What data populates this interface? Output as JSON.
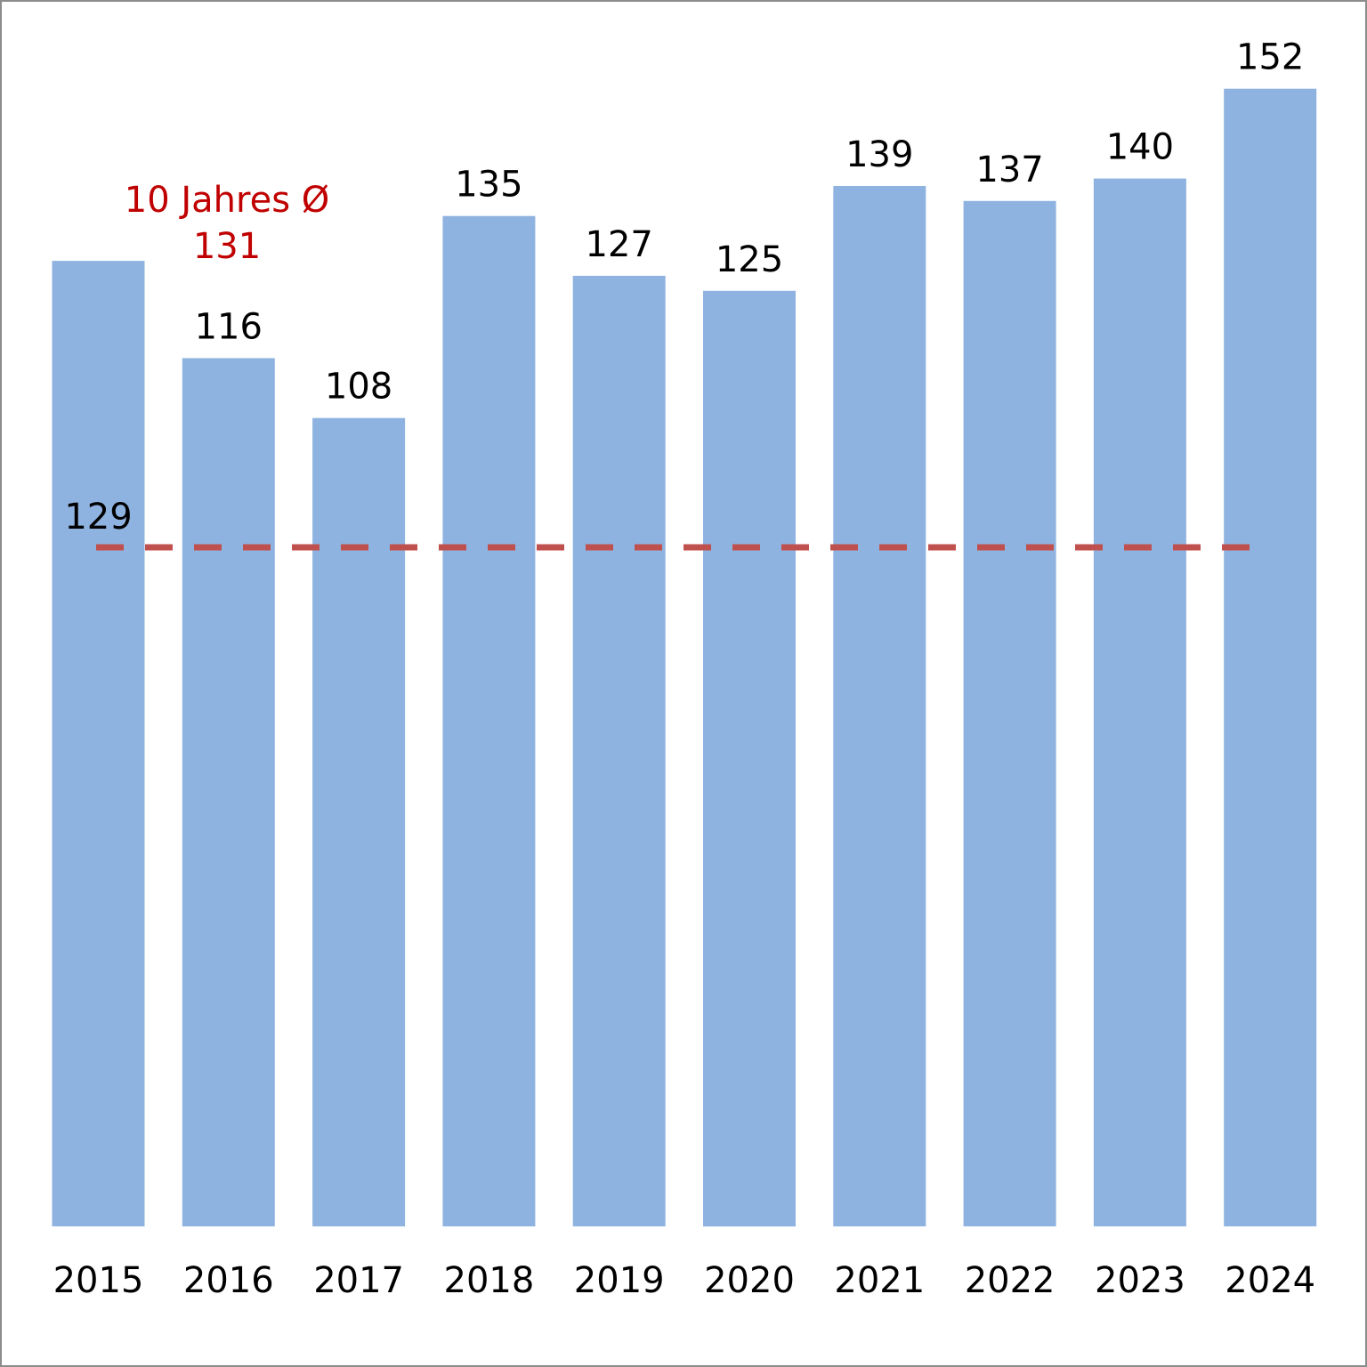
{
  "chart_data": {
    "type": "bar",
    "categories": [
      "2015",
      "2016",
      "2017",
      "2018",
      "2019",
      "2020",
      "2021",
      "2022",
      "2023",
      "2024"
    ],
    "values": [
      129,
      116,
      108,
      135,
      127,
      125,
      139,
      137,
      140,
      152
    ],
    "data_labels": [
      "129",
      "116",
      "108",
      "135",
      "127",
      "125",
      "139",
      "137",
      "140",
      "152"
    ],
    "average": {
      "value": 131,
      "label_line1": "10 Jahres Ø",
      "label_line2": "131"
    },
    "title": "",
    "xlabel": "",
    "ylabel": "",
    "ylim": [
      0,
      160
    ],
    "grid": false,
    "legend": "none",
    "colors": {
      "bar": "#8fb3e0",
      "average_line": "#c0504d",
      "average_label": "#c00000",
      "text": "#000000",
      "frame": "#8c8c8c"
    }
  }
}
